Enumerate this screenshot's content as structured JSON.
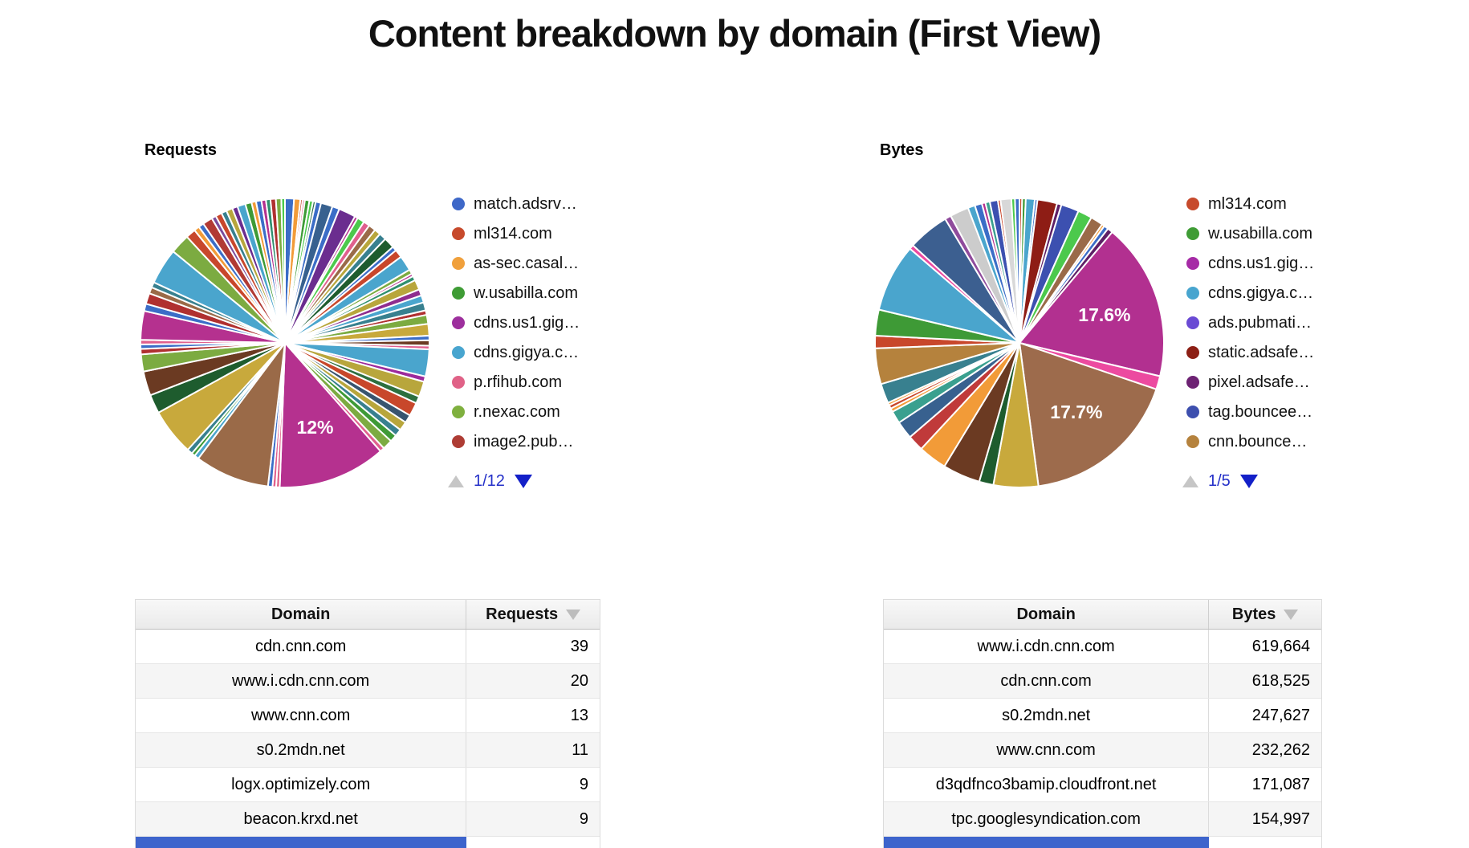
{
  "page_title": "Content breakdown by domain (First View)",
  "requests_section": {
    "label": "Requests",
    "legend": [
      {
        "label": "match.adsrv…",
        "color": "#3e68c8"
      },
      {
        "label": "ml314.com",
        "color": "#c74a2c"
      },
      {
        "label": "as-sec.casal…",
        "color": "#f0a03c"
      },
      {
        "label": "w.usabilla.com",
        "color": "#3f9c35"
      },
      {
        "label": "cdns.us1.gig…",
        "color": "#9d2f9d"
      },
      {
        "label": "cdns.gigya.c…",
        "color": "#48a5cf"
      },
      {
        "label": "p.rfihub.com",
        "color": "#e06287"
      },
      {
        "label": "r.nexac.com",
        "color": "#7fb03f"
      },
      {
        "label": "image2.pub…",
        "color": "#ae3c34"
      }
    ],
    "pager": {
      "page": "1/12"
    },
    "chart_data": {
      "type": "pie",
      "title": "Requests",
      "legend_position": "right",
      "data_labels_visible": [
        "12%"
      ],
      "segments": [
        [
          "#3b6dc7",
          1.0
        ],
        [
          "#f29b38",
          0.7
        ],
        [
          "#c8472b",
          0.25
        ],
        [
          "#e0608e",
          0.25
        ],
        [
          "#3e9a36",
          0.5
        ],
        [
          "#4cc94c",
          0.4
        ],
        [
          "#2f6f4f",
          0.3
        ],
        [
          "#3b6dc7",
          0.6
        ],
        [
          "#38618f",
          1.3
        ],
        [
          "#3b6dc7",
          0.8
        ],
        [
          "#6b2d8f",
          1.9
        ],
        [
          "#b5318f",
          0.35
        ],
        [
          "#4cc94c",
          0.8
        ],
        [
          "#e0608e",
          0.7
        ],
        [
          "#9a6a48",
          0.8
        ],
        [
          "#b8a63c",
          0.7
        ],
        [
          "#38808f",
          0.8
        ],
        [
          "#1e5c2e",
          1.2
        ],
        [
          "#3b6dc7",
          0.5
        ],
        [
          "#c8472b",
          0.9
        ],
        [
          "#4aa5cd",
          1.7
        ],
        [
          "#7cab41",
          0.5
        ],
        [
          "#b5318f",
          0.3
        ],
        [
          "#2f8f6f",
          0.5
        ],
        [
          "#b8a63c",
          1.1
        ],
        [
          "#8f2d8f",
          0.7
        ],
        [
          "#4aa5cd",
          0.8
        ],
        [
          "#38808f",
          0.9
        ],
        [
          "#b03030",
          0.5
        ],
        [
          "#7cab41",
          1.0
        ],
        [
          "#c8a93c",
          1.3
        ],
        [
          "#3b6dc7",
          0.5
        ],
        [
          "#6b3a22",
          0.6
        ],
        [
          "#e0608e",
          0.4
        ],
        [
          "#4aa5cd",
          3.0
        ],
        [
          "#9c2a9c",
          0.6
        ],
        [
          "#b8a63c",
          1.7
        ],
        [
          "#2d6f3f",
          0.8
        ],
        [
          "#c8472b",
          1.5
        ],
        [
          "#38546f",
          0.9
        ],
        [
          "#b8a63c",
          1.0
        ],
        [
          "#38808f",
          0.8
        ],
        [
          "#3e9a36",
          0.8
        ],
        [
          "#7cab41",
          1.1
        ],
        [
          "#e0608e",
          0.5
        ],
        [
          "#b5318f",
          12.0,
          "12%"
        ],
        [
          "#e06287",
          0.4
        ],
        [
          "#e0608e",
          0.4
        ],
        [
          "#3b6dc7",
          0.5
        ],
        [
          "#9a6a48",
          8.3
        ],
        [
          "#4aa5cd",
          0.5
        ],
        [
          "#3e9a36",
          0.4
        ],
        [
          "#38808f",
          0.6
        ],
        [
          "#c8a93c",
          5.2
        ],
        [
          "#1e5c2e",
          2.1
        ],
        [
          "#6b3a22",
          2.7
        ],
        [
          "#7cab41",
          1.9
        ],
        [
          "#b03030",
          0.6
        ],
        [
          "#3b6dc7",
          0.5
        ],
        [
          "#e0608e",
          0.5
        ],
        [
          "#b5318f",
          3.2
        ],
        [
          "#3b6dc7",
          0.8
        ],
        [
          "#b03030",
          1.2
        ],
        [
          "#9a6a48",
          0.7
        ],
        [
          "#38808f",
          0.6
        ],
        [
          "#4aa5cd",
          4.0
        ],
        [
          "#7cab41",
          2.2
        ],
        [
          "#c8472b",
          1.1
        ],
        [
          "#f29b38",
          0.6
        ],
        [
          "#3b6dc7",
          0.6
        ],
        [
          "#b13a34",
          1.1
        ],
        [
          "#7a4b9c",
          0.5
        ],
        [
          "#c8472b",
          0.7
        ],
        [
          "#38808f",
          0.6
        ],
        [
          "#b8a63c",
          0.7
        ],
        [
          "#6b2d8f",
          0.6
        ],
        [
          "#4aa5cd",
          0.9
        ],
        [
          "#3e9a36",
          0.7
        ],
        [
          "#f29b38",
          0.5
        ],
        [
          "#3b6dc7",
          0.6
        ],
        [
          "#b5318f",
          0.5
        ],
        [
          "#2f8f6f",
          0.5
        ],
        [
          "#b03030",
          0.6
        ],
        [
          "#7cab41",
          0.6
        ],
        [
          "#4cc94c",
          0.4
        ]
      ]
    }
  },
  "bytes_section": {
    "label": "Bytes",
    "legend": [
      {
        "label": "ml314.com",
        "color": "#c74a2c"
      },
      {
        "label": "w.usabilla.com",
        "color": "#3f9c35"
      },
      {
        "label": "cdns.us1.gig…",
        "color": "#a62ba6"
      },
      {
        "label": "cdns.gigya.c…",
        "color": "#48a5cf"
      },
      {
        "label": "ads.pubmati…",
        "color": "#6a4ad4"
      },
      {
        "label": "static.adsafe…",
        "color": "#8c1f15"
      },
      {
        "label": "pixel.adsafe…",
        "color": "#6d2273"
      },
      {
        "label": "tag.bouncee…",
        "color": "#3d4fae"
      },
      {
        "label": "cnn.bounce…",
        "color": "#b5823d"
      }
    ],
    "pager": {
      "page": "1/5"
    },
    "chart_data": {
      "type": "pie",
      "title": "Bytes",
      "legend_position": "right",
      "data_labels_visible": [
        "17.6%",
        "17.7%"
      ],
      "segments": [
        [
          "#c8472b",
          0.3
        ],
        [
          "#3e9a36",
          0.4
        ],
        [
          "#4aa5cd",
          1.0
        ],
        [
          "#3b6dc7",
          0.3
        ],
        [
          "#8e1d15",
          2.2
        ],
        [
          "#5e1f66",
          0.5
        ],
        [
          "#3c50b0",
          2.0
        ],
        [
          "#4cc94c",
          1.6
        ],
        [
          "#9a6a48",
          1.4
        ],
        [
          "#f29b38",
          0.3
        ],
        [
          "#3b6dc7",
          0.5
        ],
        [
          "#5e1f66",
          0.6
        ],
        [
          "#b23090",
          17.6,
          "17.6%"
        ],
        [
          "#ec4aa0",
          1.5
        ],
        [
          "#9d6b4c",
          17.7,
          "17.7%"
        ],
        [
          "#c8a93c",
          5.0
        ],
        [
          "#1e5c2e",
          1.6
        ],
        [
          "#6b3a22",
          4.2
        ],
        [
          "#f29b38",
          3.2
        ],
        [
          "#c03a3a",
          1.8
        ],
        [
          "#38618f",
          2.0
        ],
        [
          "#3aa08f",
          1.4
        ],
        [
          "#f29b38",
          0.4
        ],
        [
          "#c8472b",
          0.4
        ],
        [
          "#f29b38",
          0.3
        ],
        [
          "#38808f",
          2.2
        ],
        [
          "#b5823d",
          4.0
        ],
        [
          "#c8472b",
          1.4
        ],
        [
          "#3e9a36",
          2.9
        ],
        [
          "#4aa5cd",
          7.6
        ],
        [
          "#ec4aa0",
          0.5
        ],
        [
          "#3c5f90",
          4.6
        ],
        [
          "#8f4b9c",
          0.7
        ],
        [
          "#cccccc",
          2.1
        ],
        [
          "#4aa5cd",
          0.8
        ],
        [
          "#3b6dc7",
          0.8
        ],
        [
          "#b5318f",
          0.4
        ],
        [
          "#3aa08f",
          0.5
        ],
        [
          "#3c50b0",
          0.9
        ],
        [
          "#c8472b",
          0.3
        ],
        [
          "#d8d8d8",
          1.2
        ],
        [
          "#4cc94c",
          0.4
        ],
        [
          "#3b6dc7",
          0.5
        ]
      ]
    }
  },
  "requests_table": {
    "headers": {
      "domain": "Domain",
      "value": "Requests"
    },
    "sorted_by": "Requests",
    "rows": [
      {
        "domain": "cdn.cnn.com",
        "value": "39"
      },
      {
        "domain": "www.i.cdn.cnn.com",
        "value": "20"
      },
      {
        "domain": "www.cnn.com",
        "value": "13"
      },
      {
        "domain": "s0.2mdn.net",
        "value": "11"
      },
      {
        "domain": "logx.optimizely.com",
        "value": "9"
      },
      {
        "domain": "beacon.krxd.net",
        "value": "9"
      }
    ]
  },
  "bytes_table": {
    "headers": {
      "domain": "Domain",
      "value": "Bytes"
    },
    "sorted_by": "Bytes",
    "rows": [
      {
        "domain": "www.i.cdn.cnn.com",
        "value": "619,664"
      },
      {
        "domain": "cdn.cnn.com",
        "value": "618,525"
      },
      {
        "domain": "s0.2mdn.net",
        "value": "247,627"
      },
      {
        "domain": "www.cnn.com",
        "value": "232,262"
      },
      {
        "domain": "d3qdfnco3bamip.cloudfront.net",
        "value": "171,087"
      },
      {
        "domain": "tpc.googlesyndication.com",
        "value": "154,997"
      }
    ]
  }
}
